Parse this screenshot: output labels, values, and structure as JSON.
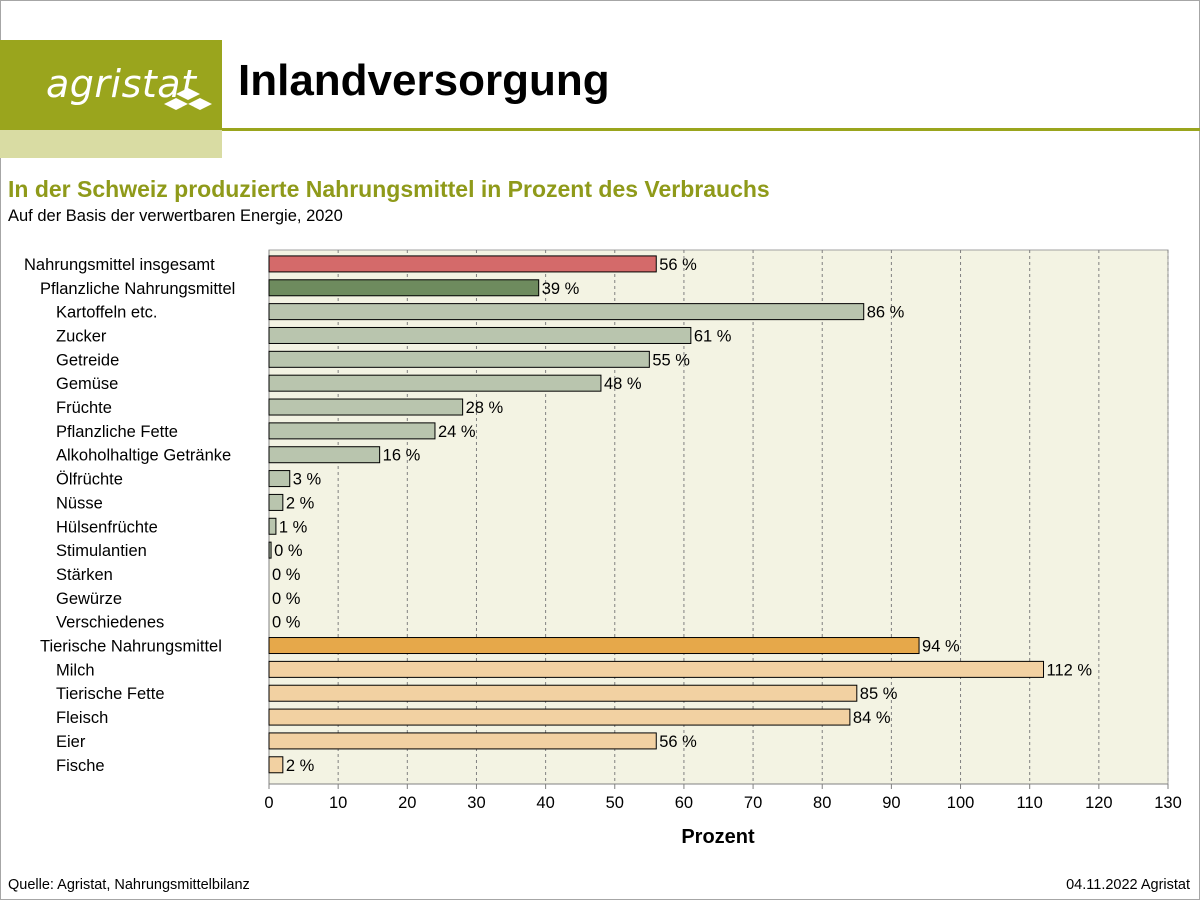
{
  "header": {
    "logo_text": "agristat",
    "title": "Inlandversorgung"
  },
  "subtitle": "In der Schweiz produzierte Nahrungsmittel in Prozent des Verbrauchs",
  "subsubtitle": "Auf der Basis der verwertbaren Energie, 2020",
  "footer": {
    "source": "Quelle: Agristat, Nahrungsmittelbilanz",
    "date": "04.11.2022 Agristat"
  },
  "colors": {
    "brand": "#9aa51d",
    "subtitle": "#8f9a1a",
    "plot_bg": "#f3f3e3",
    "total": "#d46a6a",
    "plant_group": "#6e8b5e",
    "plant_item": "#b9c5ae",
    "animal_group": "#e6a84a",
    "animal_item": "#f2d1a2"
  },
  "chart_data": {
    "type": "bar",
    "orientation": "horizontal",
    "xlabel": "Prozent",
    "xlim": [
      0,
      130
    ],
    "xticks": [
      0,
      10,
      20,
      30,
      40,
      50,
      60,
      70,
      80,
      90,
      100,
      110,
      120,
      130
    ],
    "grid": "vertical dashed",
    "value_suffix": " %",
    "categories": [
      {
        "label": "Nahrungsmittel  insgesamt",
        "value": 56,
        "level": 0,
        "group": "total"
      },
      {
        "label": "Pflanzliche Nahrungsmittel",
        "value": 39,
        "level": 1,
        "group": "plant_group"
      },
      {
        "label": "Kartoffeln etc.",
        "value": 86,
        "level": 2,
        "group": "plant_item"
      },
      {
        "label": "Zucker",
        "value": 61,
        "level": 2,
        "group": "plant_item"
      },
      {
        "label": "Getreide",
        "value": 55,
        "level": 2,
        "group": "plant_item"
      },
      {
        "label": "Gemüse",
        "value": 48,
        "level": 2,
        "group": "plant_item"
      },
      {
        "label": "Früchte",
        "value": 28,
        "level": 2,
        "group": "plant_item"
      },
      {
        "label": "Pflanzliche Fette",
        "value": 24,
        "level": 2,
        "group": "plant_item"
      },
      {
        "label": "Alkoholhaltige Getränke",
        "value": 16,
        "level": 2,
        "group": "plant_item"
      },
      {
        "label": "Ölfrüchte",
        "value": 3,
        "level": 2,
        "group": "plant_item"
      },
      {
        "label": "Nüsse",
        "value": 2,
        "level": 2,
        "group": "plant_item"
      },
      {
        "label": "Hülsenfrüchte",
        "value": 1,
        "level": 2,
        "group": "plant_item"
      },
      {
        "label": "Stimulantien",
        "value": 0.3,
        "display": "0 %",
        "level": 2,
        "group": "plant_item"
      },
      {
        "label": "Stärken",
        "value": 0,
        "level": 2,
        "group": "plant_item"
      },
      {
        "label": "Gewürze",
        "value": 0,
        "level": 2,
        "group": "plant_item"
      },
      {
        "label": "Verschiedenes",
        "value": 0,
        "level": 2,
        "group": "plant_item"
      },
      {
        "label": "Tierische Nahrungsmittel",
        "value": 94,
        "level": 1,
        "group": "animal_group"
      },
      {
        "label": "Milch",
        "value": 112,
        "level": 2,
        "group": "animal_item"
      },
      {
        "label": "Tierische Fette",
        "value": 85,
        "level": 2,
        "group": "animal_item"
      },
      {
        "label": "Fleisch",
        "value": 84,
        "level": 2,
        "group": "animal_item"
      },
      {
        "label": "Eier",
        "value": 56,
        "level": 2,
        "group": "animal_item"
      },
      {
        "label": "Fische",
        "value": 2,
        "level": 2,
        "group": "animal_item"
      }
    ]
  }
}
